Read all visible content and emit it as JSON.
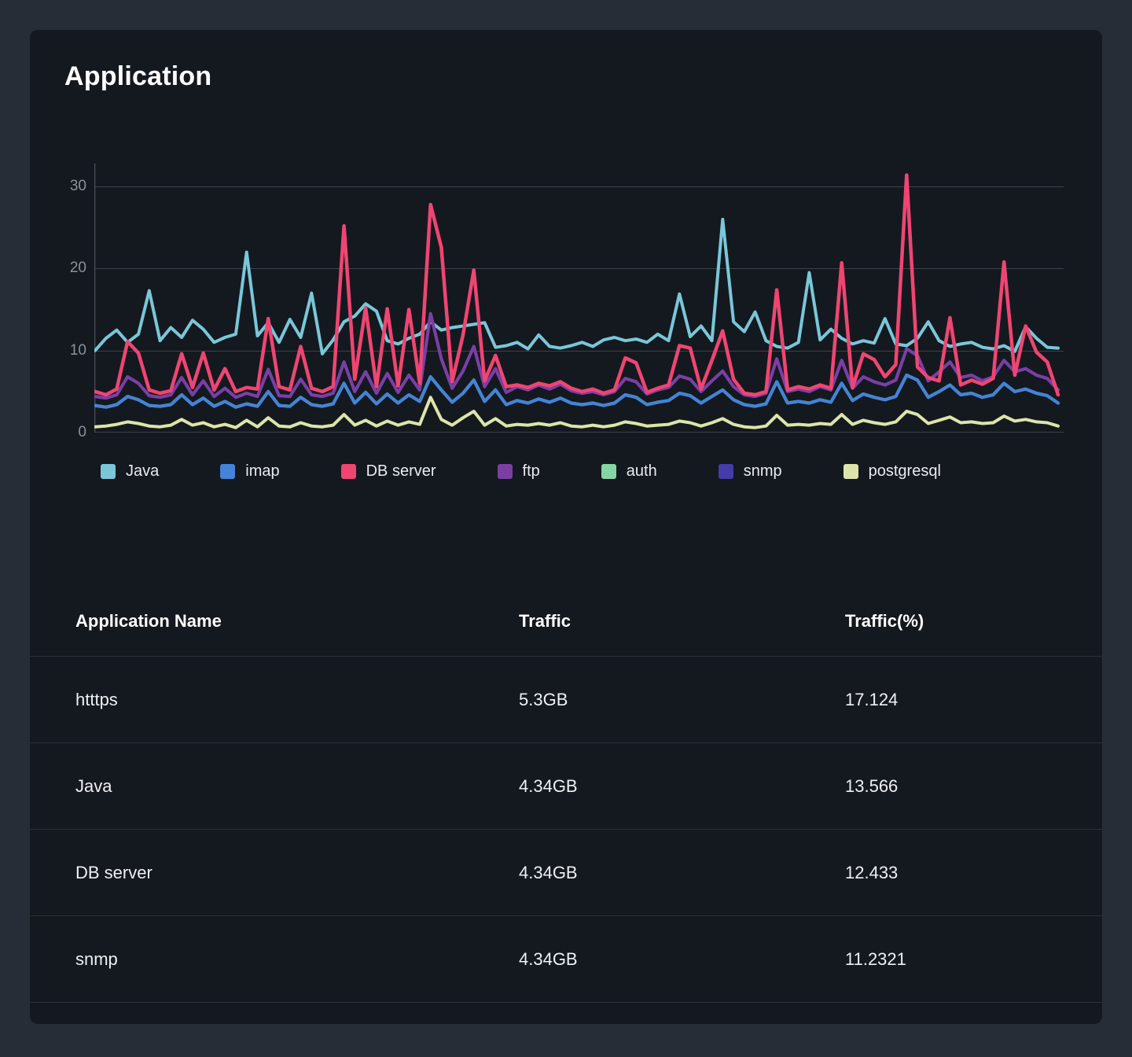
{
  "card": {
    "title": "Application"
  },
  "chart_data": {
    "type": "line",
    "title": "Application",
    "x_axis": {
      "labels_visible": false,
      "points": 90
    },
    "ylim": [
      0,
      32.8
    ],
    "y_ticks": [
      0,
      10,
      20,
      30
    ],
    "grid": "horizontal",
    "legend_position": "bottom",
    "colors": {
      "grid": "#3a414b",
      "axis": "#4a515b",
      "tick_text": "#8b9199"
    },
    "series": [
      {
        "name": "Java",
        "color": "#79c7d9",
        "values": [
          10.0,
          11.5,
          12.5,
          11.0,
          12.0,
          17.3,
          11.2,
          12.8,
          11.6,
          13.7,
          12.6,
          11.0,
          11.6,
          12.0,
          22.0,
          11.8,
          13.4,
          11.0,
          13.8,
          11.6,
          17.0,
          9.6,
          11.3,
          13.5,
          14.2,
          15.7,
          14.8,
          11.2,
          10.8,
          11.5,
          12.0,
          13.5,
          12.5,
          12.8,
          13.0,
          13.2,
          13.4,
          10.4,
          10.6,
          11.0,
          10.2,
          11.9,
          10.5,
          10.3,
          10.6,
          11.0,
          10.5,
          11.3,
          11.6,
          11.2,
          11.4,
          11.0,
          12.0,
          11.2,
          16.9,
          11.7,
          13.0,
          11.2,
          26.0,
          13.5,
          12.3,
          14.7,
          11.2,
          10.5,
          10.3,
          11.0,
          19.5,
          11.3,
          12.6,
          11.5,
          10.8,
          11.2,
          10.9,
          13.9,
          10.8,
          10.6,
          11.5,
          13.5,
          11.2,
          10.5,
          10.8,
          11.0,
          10.4,
          10.2,
          10.6,
          9.9,
          12.9,
          11.5,
          10.4,
          10.3
        ]
      },
      {
        "name": "imap",
        "color": "#4383d9",
        "values": [
          3.3,
          3.1,
          3.4,
          4.4,
          4.0,
          3.3,
          3.2,
          3.4,
          4.6,
          3.4,
          4.2,
          3.2,
          3.8,
          3.1,
          3.5,
          3.2,
          5.0,
          3.3,
          3.2,
          4.3,
          3.4,
          3.2,
          3.5,
          6.0,
          3.6,
          4.9,
          3.5,
          4.7,
          3.6,
          4.6,
          3.8,
          6.8,
          5.2,
          3.7,
          4.8,
          6.4,
          3.8,
          5.2,
          3.4,
          3.9,
          3.6,
          4.1,
          3.7,
          4.2,
          3.6,
          3.4,
          3.6,
          3.3,
          3.6,
          4.6,
          4.3,
          3.4,
          3.7,
          3.9,
          4.8,
          4.5,
          3.6,
          4.4,
          5.2,
          4.0,
          3.4,
          3.2,
          3.5,
          6.2,
          3.6,
          3.8,
          3.6,
          4.0,
          3.7,
          6.0,
          3.9,
          4.7,
          4.3,
          4.0,
          4.4,
          7.0,
          6.4,
          4.3,
          5.0,
          5.8,
          4.6,
          4.8,
          4.3,
          4.6,
          6.0,
          5.0,
          5.3,
          4.8,
          4.5,
          3.6
        ]
      },
      {
        "name": "DB server",
        "color": "#ef4572",
        "values": [
          5.0,
          4.6,
          5.3,
          11.1,
          9.7,
          5.2,
          4.8,
          5.1,
          9.6,
          5.5,
          9.7,
          5.2,
          7.8,
          5.0,
          5.5,
          5.3,
          13.9,
          5.6,
          5.2,
          10.5,
          5.4,
          5.0,
          5.6,
          25.2,
          6.5,
          15.2,
          5.6,
          15.1,
          5.7,
          15.0,
          6.0,
          27.8,
          22.6,
          6.2,
          11.9,
          19.8,
          6.3,
          9.4,
          5.6,
          5.8,
          5.5,
          6.0,
          5.7,
          6.2,
          5.4,
          5.0,
          5.3,
          4.8,
          5.2,
          9.1,
          8.5,
          4.9,
          5.4,
          5.8,
          10.6,
          10.3,
          5.3,
          8.8,
          12.4,
          6.5,
          4.8,
          4.6,
          5.0,
          17.4,
          5.2,
          5.6,
          5.3,
          5.8,
          5.4,
          20.7,
          5.5,
          9.6,
          8.9,
          6.8,
          8.3,
          31.4,
          8.0,
          6.7,
          6.3,
          14.0,
          5.8,
          6.4,
          5.9,
          6.6,
          20.8,
          7.0,
          13.0,
          9.8,
          8.6,
          4.6
        ]
      },
      {
        "name": "ftp",
        "color": "#7b3fa4",
        "values": [
          4.4,
          4.2,
          4.6,
          6.8,
          6.0,
          4.5,
          4.3,
          4.6,
          6.7,
          4.6,
          6.3,
          4.4,
          5.4,
          4.3,
          4.8,
          4.4,
          7.7,
          4.5,
          4.4,
          6.5,
          4.6,
          4.4,
          4.8,
          8.6,
          5.0,
          7.4,
          4.8,
          7.2,
          4.9,
          7.0,
          5.2,
          14.5,
          9.0,
          5.4,
          7.5,
          10.5,
          5.6,
          7.8,
          4.9,
          5.6,
          5.2,
          5.8,
          5.3,
          5.9,
          5.1,
          4.8,
          5.0,
          4.6,
          5.0,
          6.6,
          6.2,
          4.7,
          5.2,
          5.5,
          6.9,
          6.5,
          5.0,
          6.3,
          7.5,
          5.6,
          4.6,
          4.4,
          4.8,
          9.0,
          5.0,
          5.3,
          5.0,
          5.6,
          5.2,
          8.8,
          5.4,
          6.8,
          6.2,
          5.8,
          6.4,
          10.2,
          9.4,
          6.3,
          7.4,
          8.6,
          6.7,
          7.0,
          6.3,
          6.8,
          8.8,
          7.4,
          7.8,
          7.0,
          6.6,
          5.2
        ]
      },
      {
        "name": "auth",
        "color": "#85d6a4",
        "values": [
          3.3,
          3.1,
          3.4,
          4.4,
          4.0,
          3.3,
          3.2,
          3.4,
          4.6,
          3.4,
          4.2,
          3.2,
          3.8,
          3.1,
          3.5,
          3.2,
          5.0,
          3.3,
          3.2,
          4.3,
          3.4,
          3.2,
          3.5,
          6.0,
          3.6,
          4.9,
          3.5,
          4.7,
          3.6,
          4.6,
          3.8,
          6.8,
          5.2,
          3.7,
          4.8,
          6.4,
          3.8,
          5.2,
          3.4,
          3.9,
          3.6,
          4.1,
          3.7,
          4.2,
          3.6,
          3.4,
          3.6,
          3.3,
          3.6,
          4.6,
          4.3,
          3.4,
          3.7,
          3.9,
          4.8,
          4.5,
          3.6,
          4.4,
          5.2,
          4.0,
          3.4,
          3.2,
          3.5,
          6.2,
          3.6,
          3.8,
          3.6,
          4.0,
          3.7,
          6.0,
          3.9,
          4.7,
          4.3,
          4.0,
          4.4,
          7.0,
          6.4,
          4.3,
          5.0,
          5.8,
          4.6,
          4.8,
          4.3,
          4.6,
          6.0,
          5.0,
          5.3,
          4.8,
          4.5,
          3.6
        ]
      },
      {
        "name": "snmp",
        "color": "#453ca8",
        "values": [
          4.4,
          4.2,
          4.6,
          6.8,
          6.0,
          4.5,
          4.3,
          4.6,
          6.7,
          4.6,
          6.3,
          4.4,
          5.4,
          4.3,
          4.8,
          4.4,
          7.7,
          4.5,
          4.4,
          6.5,
          4.6,
          4.4,
          4.8,
          8.6,
          5.0,
          7.4,
          4.8,
          7.2,
          4.9,
          7.0,
          5.2,
          14.5,
          9.0,
          5.4,
          7.5,
          10.5,
          5.6,
          7.8,
          4.9,
          5.6,
          5.2,
          5.8,
          5.3,
          5.9,
          5.1,
          4.8,
          5.0,
          4.6,
          5.0,
          6.6,
          6.2,
          4.7,
          5.2,
          5.5,
          6.9,
          6.5,
          5.0,
          6.3,
          7.5,
          5.6,
          4.6,
          4.4,
          4.8,
          9.0,
          5.0,
          5.3,
          5.0,
          5.6,
          5.2,
          8.8,
          5.4,
          6.8,
          6.2,
          5.8,
          6.4,
          10.2,
          9.4,
          6.3,
          7.4,
          8.6,
          6.7,
          7.0,
          6.3,
          6.8,
          8.8,
          7.4,
          7.8,
          7.0,
          6.6,
          5.2
        ]
      },
      {
        "name": "postgresql",
        "color": "#dce5a9",
        "values": [
          0.7,
          0.8,
          1.0,
          1.3,
          1.1,
          0.8,
          0.7,
          0.9,
          1.6,
          0.9,
          1.2,
          0.7,
          1.0,
          0.6,
          1.5,
          0.7,
          1.8,
          0.8,
          0.7,
          1.2,
          0.8,
          0.7,
          0.9,
          2.2,
          0.9,
          1.5,
          0.8,
          1.4,
          0.9,
          1.3,
          1.0,
          4.3,
          1.6,
          0.9,
          1.8,
          2.6,
          0.9,
          1.7,
          0.8,
          1.0,
          0.9,
          1.1,
          0.9,
          1.2,
          0.8,
          0.7,
          0.9,
          0.7,
          0.9,
          1.3,
          1.1,
          0.8,
          0.9,
          1.0,
          1.4,
          1.2,
          0.8,
          1.2,
          1.7,
          1.0,
          0.7,
          0.6,
          0.8,
          2.1,
          0.9,
          1.0,
          0.9,
          1.1,
          1.0,
          2.2,
          1.0,
          1.5,
          1.2,
          1.0,
          1.3,
          2.6,
          2.2,
          1.1,
          1.5,
          1.9,
          1.2,
          1.3,
          1.1,
          1.2,
          2.0,
          1.4,
          1.6,
          1.3,
          1.2,
          0.8
        ]
      }
    ]
  },
  "table": {
    "columns": [
      "Application Name",
      "Traffic",
      "Traffic(%)"
    ],
    "rows": [
      {
        "name": "htttps",
        "traffic": "5.3GB",
        "traffic_pct": "17.124"
      },
      {
        "name": "Java",
        "traffic": "4.34GB",
        "traffic_pct": "13.566"
      },
      {
        "name": "DB server",
        "traffic": "4.34GB",
        "traffic_pct": "12.433"
      },
      {
        "name": "snmp",
        "traffic": "4.34GB",
        "traffic_pct": "11.2321"
      }
    ]
  }
}
